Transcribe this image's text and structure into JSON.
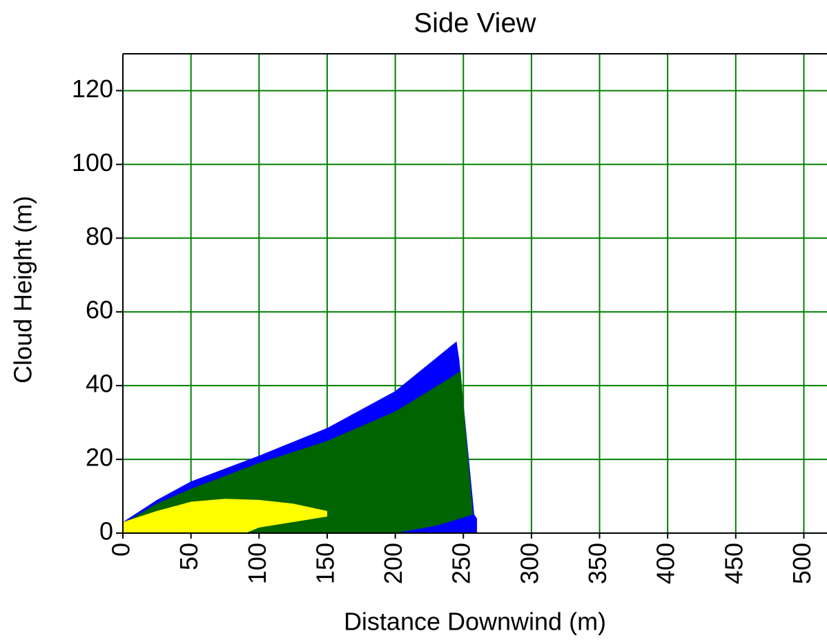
{
  "chart_data": {
    "type": "polygon",
    "title": "Side View",
    "x_label": "Distance Downwind (m)",
    "y_label": "Cloud Height (m)",
    "xlim": [
      0,
      517
    ],
    "ylim": [
      0,
      130
    ],
    "xticks": [
      0,
      50,
      100,
      150,
      200,
      250,
      300,
      350,
      400,
      450,
      500
    ],
    "yticks": [
      0,
      20,
      40,
      60,
      80,
      100,
      120
    ],
    "grid": true,
    "grid_color": "#008000",
    "series": [
      {
        "color": "#0000ff",
        "x": [
          0,
          0,
          25,
          50,
          100,
          150,
          200,
          245,
          247,
          258,
          260,
          260
        ],
        "values": [
          0,
          3,
          9,
          14,
          21,
          28.5,
          38.5,
          52,
          47,
          5,
          4,
          0
        ]
      },
      {
        "color": "#006400",
        "x": [
          0,
          0,
          25,
          50,
          100,
          150,
          200,
          240,
          248,
          257,
          230,
          200
        ],
        "values": [
          0,
          2.5,
          8,
          12,
          19,
          25,
          33,
          42,
          44,
          5,
          2,
          0
        ]
      },
      {
        "color": "#ffff00",
        "x": [
          0,
          0,
          25,
          50,
          75,
          100,
          125,
          150,
          150,
          125,
          100,
          90
        ],
        "values": [
          0,
          3,
          6,
          8.5,
          9.3,
          9,
          8,
          6,
          4.5,
          3,
          1.5,
          0
        ]
      }
    ]
  }
}
